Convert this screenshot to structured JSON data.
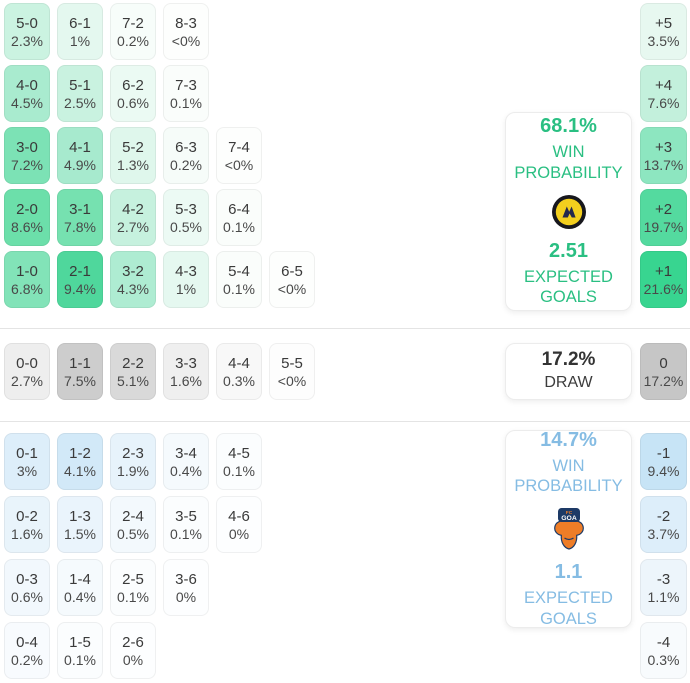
{
  "chart_data": {
    "type": "heatmap",
    "title": "",
    "description": "Correct-score probability matrix with goal-margin distribution, win probabilities and expected goals",
    "sections": {
      "home_win": {
        "accent": "#2abf82",
        "rows": [
          {
            "cells": [
              {
                "score": "5-0",
                "pct": "2.3%",
                "bg": "#cbf3e1"
              },
              {
                "score": "6-1",
                "pct": "1%",
                "bg": "#e4f8ef"
              },
              {
                "score": "7-2",
                "pct": "0.2%",
                "bg": "#f7fdfa"
              },
              {
                "score": "8-3",
                "pct": "<0%",
                "bg": "#fdfefd"
              }
            ]
          },
          {
            "cells": [
              {
                "score": "4-0",
                "pct": "4.5%",
                "bg": "#a9ebcf"
              },
              {
                "score": "5-1",
                "pct": "2.5%",
                "bg": "#c9f2e0"
              },
              {
                "score": "6-2",
                "pct": "0.6%",
                "bg": "#ebfaf3"
              },
              {
                "score": "7-3",
                "pct": "0.1%",
                "bg": "#fafdfb"
              }
            ]
          },
          {
            "cells": [
              {
                "score": "3-0",
                "pct": "7.2%",
                "bg": "#7ce2b5"
              },
              {
                "score": "4-1",
                "pct": "4.9%",
                "bg": "#a7eace"
              },
              {
                "score": "5-2",
                "pct": "1.3%",
                "bg": "#dff7ec"
              },
              {
                "score": "6-3",
                "pct": "0.2%",
                "bg": "#f6fcf9"
              },
              {
                "score": "7-4",
                "pct": "<0%",
                "bg": "#fdfefd"
              }
            ]
          },
          {
            "cells": [
              {
                "score": "2-0",
                "pct": "8.6%",
                "bg": "#6cdfaa"
              },
              {
                "score": "3-1",
                "pct": "7.8%",
                "bg": "#76e1b0"
              },
              {
                "score": "4-2",
                "pct": "2.7%",
                "bg": "#c6f1de"
              },
              {
                "score": "5-3",
                "pct": "0.5%",
                "bg": "#ecfaf4"
              },
              {
                "score": "6-4",
                "pct": "0.1%",
                "bg": "#fafdfb"
              }
            ]
          },
          {
            "cells": [
              {
                "score": "1-0",
                "pct": "6.8%",
                "bg": "#82e3b8"
              },
              {
                "score": "2-1",
                "pct": "9.4%",
                "bg": "#4fd79c"
              },
              {
                "score": "3-2",
                "pct": "4.3%",
                "bg": "#aeecd2"
              },
              {
                "score": "4-3",
                "pct": "1%",
                "bg": "#e5f8f0"
              },
              {
                "score": "5-4",
                "pct": "0.1%",
                "bg": "#fafdfb"
              },
              {
                "score": "6-5",
                "pct": "<0%",
                "bg": "#fdfefd"
              }
            ]
          }
        ],
        "margins": [
          {
            "label": "+5",
            "pct": "3.5%",
            "bg": "#e7f8f0"
          },
          {
            "label": "+4",
            "pct": "7.6%",
            "bg": "#c3f0dc"
          },
          {
            "label": "+3",
            "pct": "13.7%",
            "bg": "#8de6c0"
          },
          {
            "label": "+2",
            "pct": "19.7%",
            "bg": "#54da9f"
          },
          {
            "label": "+1",
            "pct": "21.6%",
            "bg": "#38d590"
          }
        ],
        "card": {
          "win_probability": "68.1%",
          "win_label": "WIN PROBABILITY",
          "expected_goals": "2.51",
          "xg_label": "EXPECTED GOALS",
          "crest_icon": "home-team-crest-icon",
          "crest_colors": {
            "ring": "#17171d",
            "center": "#f3cf1e",
            "mark": "#23284d"
          }
        }
      },
      "draw": {
        "accent": "#bdbdbd",
        "rows": [
          {
            "cells": [
              {
                "score": "0-0",
                "pct": "2.7%",
                "bg": "#eeeeee"
              },
              {
                "score": "1-1",
                "pct": "7.5%",
                "bg": "#cdcdcd"
              },
              {
                "score": "2-2",
                "pct": "5.1%",
                "bg": "#d9d9d9"
              },
              {
                "score": "3-3",
                "pct": "1.6%",
                "bg": "#efefef"
              },
              {
                "score": "4-4",
                "pct": "0.3%",
                "bg": "#f8f8f8"
              },
              {
                "score": "5-5",
                "pct": "<0%",
                "bg": "#fdfdfd"
              }
            ]
          }
        ],
        "margins": [
          {
            "label": "0",
            "pct": "17.2%",
            "bg": "#c6c6c6"
          }
        ],
        "card": {
          "probability": "17.2%",
          "label": "DRAW"
        }
      },
      "away_win": {
        "accent": "#85bce3",
        "rows": [
          {
            "cells": [
              {
                "score": "0-1",
                "pct": "3%",
                "bg": "#ddeefa"
              },
              {
                "score": "1-2",
                "pct": "4.1%",
                "bg": "#d2e9f8"
              },
              {
                "score": "2-3",
                "pct": "1.9%",
                "bg": "#e7f3fb"
              },
              {
                "score": "3-4",
                "pct": "0.4%",
                "bg": "#f5fafd"
              },
              {
                "score": "4-5",
                "pct": "0.1%",
                "bg": "#fbfdfe"
              }
            ]
          },
          {
            "cells": [
              {
                "score": "0-2",
                "pct": "1.6%",
                "bg": "#e9f4fb"
              },
              {
                "score": "1-3",
                "pct": "1.5%",
                "bg": "#eaf4fc"
              },
              {
                "score": "2-4",
                "pct": "0.5%",
                "bg": "#f3f9fd"
              },
              {
                "score": "3-5",
                "pct": "0.1%",
                "bg": "#fbfdfe"
              },
              {
                "score": "4-6",
                "pct": "0%",
                "bg": "#fdfeff"
              }
            ]
          },
          {
            "cells": [
              {
                "score": "0-3",
                "pct": "0.6%",
                "bg": "#f2f8fd"
              },
              {
                "score": "1-4",
                "pct": "0.4%",
                "bg": "#f5fafd"
              },
              {
                "score": "2-5",
                "pct": "0.1%",
                "bg": "#fbfdfe"
              },
              {
                "score": "3-6",
                "pct": "0%",
                "bg": "#fdfeff"
              }
            ]
          },
          {
            "cells": [
              {
                "score": "0-4",
                "pct": "0.2%",
                "bg": "#f8fbfe"
              },
              {
                "score": "1-5",
                "pct": "0.1%",
                "bg": "#fbfdfe"
              },
              {
                "score": "2-6",
                "pct": "0%",
                "bg": "#fdfeff"
              }
            ]
          }
        ],
        "margins": [
          {
            "label": "-1",
            "pct": "9.4%",
            "bg": "#c7e4f6"
          },
          {
            "label": "-2",
            "pct": "3.7%",
            "bg": "#ddeefa"
          },
          {
            "label": "-3",
            "pct": "1.1%",
            "bg": "#edf5fb"
          },
          {
            "label": "-4",
            "pct": "0.3%",
            "bg": "#f8fbfd"
          }
        ],
        "card": {
          "win_probability": "14.7%",
          "win_label": "WIN PROBABILITY",
          "expected_goals": "1.1",
          "xg_label": "EXPECTED GOALS",
          "crest_icon": "away-team-crest-icon",
          "crest_text_top": "FC",
          "crest_text_main": "GOA",
          "crest_colors": {
            "shield": "#1d3a66",
            "body": "#ee7d27"
          }
        }
      }
    }
  }
}
